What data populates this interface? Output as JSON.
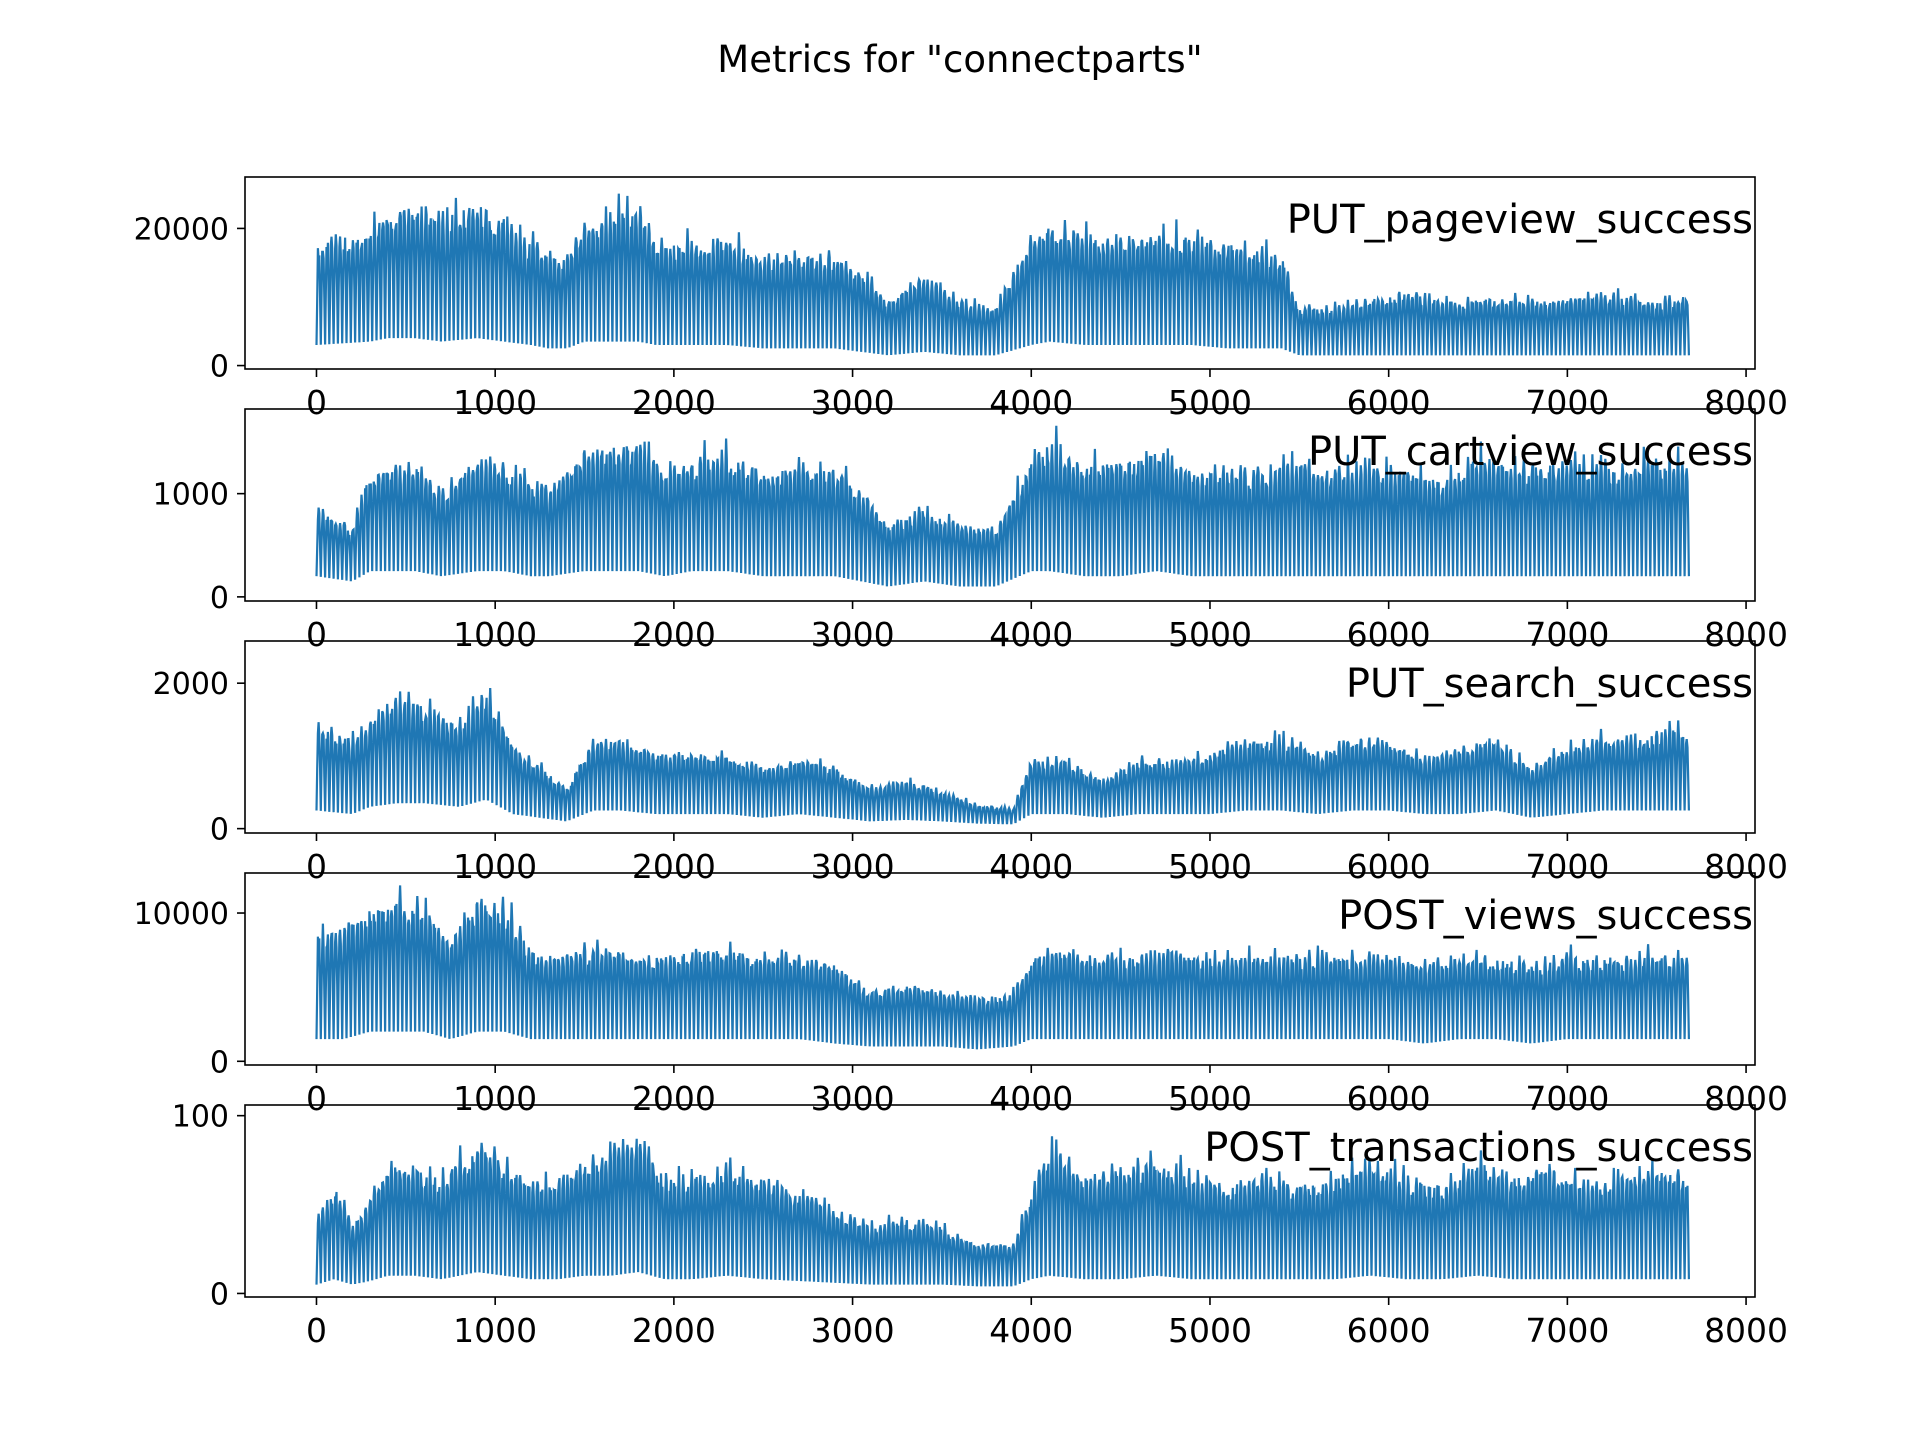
{
  "figure": {
    "title": "Metrics for \"connectparts\""
  },
  "chart_data": [
    {
      "type": "line",
      "label": "PUT_pageview_success",
      "color": "#1f77b4",
      "xlim": [
        -400,
        8050
      ],
      "ylim": [
        -500,
        27500
      ],
      "xticks": [
        0,
        1000,
        2000,
        3000,
        4000,
        5000,
        6000,
        7000,
        8000
      ],
      "yticks": [
        0,
        20000
      ],
      "x_range": [
        0,
        7680
      ],
      "period": 24,
      "envelope": {
        "x": [
          0,
          300,
          400,
          550,
          700,
          900,
          1050,
          1200,
          1300,
          1400,
          1500,
          1650,
          1800,
          1900,
          2100,
          2300,
          2500,
          2700,
          2900,
          3050,
          3200,
          3400,
          3600,
          3800,
          4000,
          4100,
          4300,
          4500,
          4700,
          4900,
          5100,
          5300,
          5400,
          5500,
          5700,
          5900,
          6100,
          6300,
          6500,
          6700,
          6900,
          7100,
          7300,
          7500,
          7680
        ],
        "peak": [
          19000,
          21000,
          24000,
          24500,
          23000,
          25500,
          23000,
          19000,
          17000,
          17000,
          22000,
          23500,
          24500,
          19000,
          19000,
          19500,
          17000,
          17000,
          17000,
          15000,
          10000,
          14000,
          10000,
          9000,
          20000,
          22500,
          20000,
          20000,
          20500,
          20000,
          19000,
          18000,
          17000,
          9000,
          9000,
          10500,
          11500,
          10000,
          10500,
          10500,
          10000,
          11000,
          11000,
          10000,
          11000
        ],
        "trough": [
          3000,
          3500,
          4000,
          4000,
          3500,
          4000,
          3500,
          3000,
          2500,
          2500,
          3500,
          3500,
          3500,
          3000,
          3000,
          3000,
          2500,
          2500,
          2500,
          2000,
          1500,
          2000,
          1500,
          1500,
          3000,
          3500,
          3000,
          3000,
          3000,
          3000,
          2500,
          2500,
          2500,
          1500,
          1500,
          1500,
          1500,
          1500,
          1500,
          1500,
          1500,
          1500,
          1500,
          1500,
          1500
        ]
      }
    },
    {
      "type": "line",
      "label": "PUT_cartview_success",
      "color": "#1f77b4",
      "xlim": [
        -400,
        8050
      ],
      "ylim": [
        -40,
        1820
      ],
      "xticks": [
        0,
        1000,
        2000,
        3000,
        4000,
        5000,
        6000,
        7000,
        8000
      ],
      "yticks": [
        0,
        1000
      ],
      "x_range": [
        0,
        7680
      ],
      "period": 24,
      "envelope": {
        "x": [
          0,
          200,
          300,
          400,
          550,
          700,
          900,
          1050,
          1200,
          1300,
          1500,
          1650,
          1800,
          1950,
          2100,
          2300,
          2500,
          2700,
          2900,
          3050,
          3200,
          3400,
          3600,
          3800,
          4000,
          4100,
          4300,
          4500,
          4700,
          4900,
          5100,
          5300,
          5500,
          5700,
          5900,
          6100,
          6300,
          6500,
          6700,
          6900,
          7100,
          7300,
          7500,
          7680
        ],
        "peak": [
          900,
          700,
          1300,
          1300,
          1350,
          1100,
          1400,
          1350,
          1200,
          1100,
          1500,
          1550,
          1600,
          1300,
          1400,
          1500,
          1300,
          1350,
          1300,
          1100,
          750,
          900,
          750,
          700,
          1400,
          1600,
          1350,
          1400,
          1500,
          1300,
          1300,
          1300,
          1400,
          1300,
          1350,
          1300,
          1200,
          1450,
          1350,
          1400,
          1350,
          1350,
          1450,
          1350
        ],
        "trough": [
          200,
          150,
          250,
          250,
          250,
          200,
          250,
          250,
          200,
          200,
          250,
          250,
          250,
          200,
          250,
          250,
          200,
          200,
          200,
          150,
          100,
          150,
          100,
          100,
          250,
          250,
          200,
          200,
          250,
          200,
          200,
          200,
          200,
          200,
          200,
          200,
          200,
          200,
          200,
          200,
          200,
          200,
          200,
          200
        ]
      }
    },
    {
      "type": "line",
      "label": "PUT_search_success",
      "color": "#1f77b4",
      "xlim": [
        -400,
        8050
      ],
      "ylim": [
        -60,
        2580
      ],
      "xticks": [
        0,
        1000,
        2000,
        3000,
        4000,
        5000,
        6000,
        7000,
        8000
      ],
      "yticks": [
        0,
        2000
      ],
      "x_range": [
        0,
        7680
      ],
      "period": 24,
      "envelope": {
        "x": [
          0,
          200,
          300,
          450,
          600,
          800,
          950,
          1100,
          1250,
          1400,
          1550,
          1700,
          1900,
          2100,
          2300,
          2500,
          2700,
          2900,
          3100,
          3300,
          3500,
          3700,
          3900,
          4000,
          4200,
          4400,
          4600,
          4800,
          5000,
          5200,
          5400,
          5600,
          5800,
          6000,
          6200,
          6400,
          6600,
          6800,
          7000,
          7200,
          7400,
          7600,
          7680
        ],
        "peak": [
          1500,
          1300,
          1600,
          1900,
          1800,
          1500,
          2000,
          1200,
          900,
          600,
          1300,
          1300,
          1100,
          1100,
          1100,
          900,
          1000,
          900,
          600,
          700,
          550,
          350,
          300,
          1000,
          1000,
          700,
          1000,
          1000,
          1100,
          1300,
          1300,
          1100,
          1300,
          1300,
          1000,
          1200,
          1300,
          900,
          1200,
          1300,
          1300,
          1500,
          1300
        ],
        "trough": [
          250,
          200,
          300,
          350,
          350,
          300,
          400,
          200,
          150,
          100,
          250,
          250,
          200,
          200,
          200,
          150,
          200,
          150,
          100,
          120,
          100,
          70,
          60,
          200,
          200,
          150,
          200,
          200,
          200,
          250,
          250,
          200,
          250,
          250,
          200,
          200,
          250,
          150,
          200,
          250,
          250,
          250,
          250
        ]
      }
    },
    {
      "type": "line",
      "label": "POST_views_success",
      "color": "#1f77b4",
      "xlim": [
        -400,
        8050
      ],
      "ylim": [
        -250,
        12700
      ],
      "xticks": [
        0,
        1000,
        2000,
        3000,
        4000,
        5000,
        6000,
        7000,
        8000
      ],
      "yticks": [
        0,
        10000
      ],
      "x_range": [
        0,
        7680
      ],
      "period": 24,
      "envelope": {
        "x": [
          0,
          150,
          300,
          450,
          600,
          750,
          900,
          1050,
          1200,
          1350,
          1500,
          1700,
          1900,
          2100,
          2300,
          2500,
          2700,
          2900,
          3100,
          3300,
          3500,
          3700,
          3900,
          4000,
          4200,
          4400,
          4600,
          4800,
          5000,
          5200,
          5400,
          5600,
          5800,
          6000,
          6200,
          6400,
          6600,
          6800,
          7000,
          7200,
          7400,
          7600,
          7680
        ],
        "peak": [
          9000,
          9500,
          11000,
          11500,
          11000,
          9000,
          11500,
          11000,
          8000,
          7500,
          8000,
          8000,
          7500,
          8000,
          8000,
          7500,
          7500,
          7000,
          5000,
          5500,
          5000,
          4500,
          5000,
          7500,
          8000,
          7500,
          7500,
          8000,
          7500,
          7500,
          7500,
          7500,
          7500,
          7500,
          7000,
          7500,
          7500,
          7000,
          7500,
          7500,
          7500,
          7500,
          7500
        ],
        "trough": [
          1500,
          1500,
          2000,
          2000,
          2000,
          1500,
          2000,
          2000,
          1500,
          1500,
          1500,
          1500,
          1500,
          1500,
          1500,
          1500,
          1500,
          1200,
          1000,
          1000,
          1000,
          800,
          1000,
          1500,
          1500,
          1500,
          1500,
          1500,
          1500,
          1500,
          1500,
          1500,
          1500,
          1500,
          1200,
          1500,
          1500,
          1200,
          1500,
          1500,
          1500,
          1500,
          1500
        ]
      }
    },
    {
      "type": "line",
      "label": "POST_transactions_success",
      "color": "#1f77b4",
      "xlim": [
        -400,
        8050
      ],
      "ylim": [
        -2,
        106
      ],
      "xticks": [
        0,
        1000,
        2000,
        3000,
        4000,
        5000,
        6000,
        7000,
        8000
      ],
      "yticks": [
        0,
        100
      ],
      "x_range": [
        0,
        7680
      ],
      "period": 24,
      "envelope": {
        "x": [
          0,
          100,
          200,
          300,
          400,
          550,
          700,
          900,
          1050,
          1200,
          1350,
          1500,
          1650,
          1800,
          1950,
          2100,
          2300,
          2500,
          2700,
          2900,
          3100,
          3300,
          3500,
          3700,
          3900,
          4000,
          4100,
          4300,
          4500,
          4700,
          4900,
          5100,
          5300,
          5500,
          5700,
          5900,
          6100,
          6300,
          6500,
          6700,
          6900,
          7100,
          7300,
          7500,
          7680
        ],
        "peak": [
          45,
          65,
          40,
          55,
          80,
          75,
          70,
          90,
          80,
          65,
          70,
          80,
          85,
          95,
          70,
          70,
          75,
          70,
          60,
          50,
          40,
          45,
          40,
          30,
          30,
          60,
          90,
          70,
          75,
          80,
          70,
          65,
          70,
          65,
          70,
          80,
          70,
          65,
          80,
          70,
          75,
          65,
          70,
          75,
          70
        ],
        "trough": [
          5,
          8,
          5,
          7,
          10,
          10,
          8,
          12,
          10,
          8,
          8,
          10,
          10,
          12,
          8,
          8,
          10,
          8,
          7,
          6,
          5,
          5,
          5,
          4,
          4,
          8,
          10,
          8,
          8,
          10,
          8,
          8,
          8,
          8,
          8,
          10,
          8,
          8,
          10,
          8,
          8,
          8,
          8,
          8,
          8
        ]
      }
    }
  ]
}
